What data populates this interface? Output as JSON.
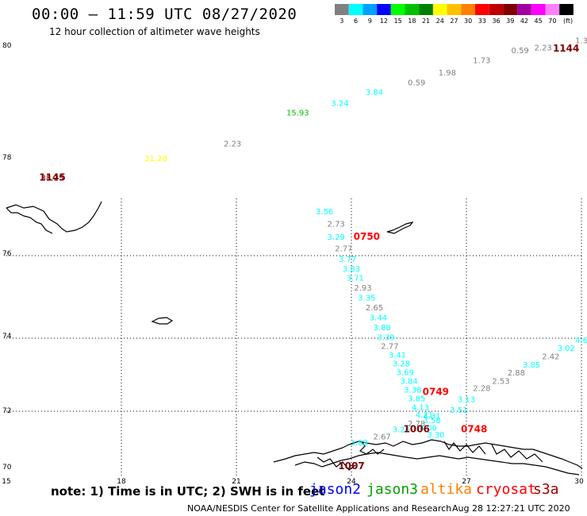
{
  "title": "00:00 – 11:59 UTC 08/27/2020",
  "subtitle": "12 hour collection of altimeter wave heights",
  "legend": {
    "labels": [
      "3",
      "6",
      "9",
      "12",
      "15",
      "18",
      "21",
      "24",
      "27",
      "30",
      "33",
      "36",
      "39",
      "42",
      "45",
      "70",
      "(ft)"
    ],
    "colors": [
      "#808080",
      "#00ffff",
      "#00a0ff",
      "#0000ff",
      "#00ff00",
      "#00c000",
      "#008000",
      "#ffff00",
      "#ffc000",
      "#ff8000",
      "#ff0000",
      "#c00000",
      "#800000",
      "#a000a0",
      "#ff00ff",
      "#ff80ff",
      "#000000"
    ]
  },
  "lat_labels": [
    "80",
    "78",
    "76",
    "74",
    "72",
    "70"
  ],
  "lon_labels": [
    "15",
    "18",
    "21",
    "24",
    "27",
    "30"
  ],
  "observations": [
    {
      "text": "38.25",
      "lon": 16.2,
      "lat": 77.55,
      "color": "#800000"
    },
    {
      "text": "21.28",
      "lon": 18.9,
      "lat": 77.95,
      "color": "#ffff00"
    },
    {
      "text": "2.23",
      "lon": 20.9,
      "lat": 78.22,
      "color": "#808080"
    },
    {
      "text": "15.93",
      "lon": 22.6,
      "lat": 78.78,
      "color": "#00c000"
    },
    {
      "text": "3.24",
      "lon": 23.7,
      "lat": 78.95,
      "color": "#00ffff"
    },
    {
      "text": "3.84",
      "lon": 24.6,
      "lat": 79.15,
      "color": "#00ffff"
    },
    {
      "text": "0.59",
      "lon": 25.7,
      "lat": 79.32,
      "color": "#808080"
    },
    {
      "text": "1.98",
      "lon": 26.5,
      "lat": 79.5,
      "color": "#808080"
    },
    {
      "text": "1.73",
      "lon": 27.4,
      "lat": 79.72,
      "color": "#808080"
    },
    {
      "text": "0.59",
      "lon": 28.4,
      "lat": 79.9,
      "color": "#808080"
    },
    {
      "text": "2.23",
      "lon": 29.0,
      "lat": 79.95,
      "color": "#808080"
    },
    {
      "text": "1.3",
      "lon": 30.0,
      "lat": 80.08,
      "color": "#808080"
    },
    {
      "text": "3.56",
      "lon": 23.3,
      "lat": 76.85,
      "color": "#00ffff"
    },
    {
      "text": "2.73",
      "lon": 23.6,
      "lat": 76.6,
      "color": "#808080"
    },
    {
      "text": "3.29",
      "lon": 23.6,
      "lat": 76.33,
      "color": "#00ffff"
    },
    {
      "text": "2.77",
      "lon": 23.8,
      "lat": 76.09,
      "color": "#808080"
    },
    {
      "text": "3.77",
      "lon": 23.9,
      "lat": 75.85,
      "color": "#00ffff"
    },
    {
      "text": "3.83",
      "lon": 24.0,
      "lat": 75.62,
      "color": "#00ffff"
    },
    {
      "text": "3.71",
      "lon": 24.1,
      "lat": 75.39,
      "color": "#00ffff"
    },
    {
      "text": "2.93",
      "lon": 24.3,
      "lat": 75.15,
      "color": "#808080"
    },
    {
      "text": "3.35",
      "lon": 24.4,
      "lat": 74.91,
      "color": "#00ffff"
    },
    {
      "text": "2.65",
      "lon": 24.6,
      "lat": 74.67,
      "color": "#808080"
    },
    {
      "text": "3.44",
      "lon": 24.7,
      "lat": 74.43,
      "color": "#00ffff"
    },
    {
      "text": "3.88",
      "lon": 24.8,
      "lat": 74.19,
      "color": "#00ffff"
    },
    {
      "text": "3.39",
      "lon": 24.9,
      "lat": 73.95,
      "color": "#00ffff"
    },
    {
      "text": "2.77",
      "lon": 25.0,
      "lat": 73.71,
      "color": "#808080"
    },
    {
      "text": "3.41",
      "lon": 25.2,
      "lat": 73.47,
      "color": "#00ffff"
    },
    {
      "text": "3.28",
      "lon": 25.3,
      "lat": 73.23,
      "color": "#00ffff"
    },
    {
      "text": "3.69",
      "lon": 25.4,
      "lat": 72.99,
      "color": "#00ffff"
    },
    {
      "text": "3.84",
      "lon": 25.5,
      "lat": 72.75,
      "color": "#00ffff"
    },
    {
      "text": "3.38",
      "lon": 25.6,
      "lat": 72.51,
      "color": "#00ffff"
    },
    {
      "text": "3.85",
      "lon": 25.7,
      "lat": 72.27,
      "color": "#00ffff"
    },
    {
      "text": "4.13",
      "lon": 25.8,
      "lat": 72.03,
      "color": "#00ffff"
    },
    {
      "text": "4.21",
      "lon": 25.9,
      "lat": 71.79,
      "color": "#00ffff"
    },
    {
      "text": "4.31",
      "lon": 26.1,
      "lat": 71.75,
      "color": "#00ffff"
    },
    {
      "text": "3.58",
      "lon": 26.1,
      "lat": 71.6,
      "color": "#00ffff"
    },
    {
      "text": "2.78",
      "lon": 25.7,
      "lat": 71.5,
      "color": "#808080"
    },
    {
      "text": "4.00",
      "lon": 26.0,
      "lat": 71.35,
      "color": "#00ffff"
    },
    {
      "text": "3.30",
      "lon": 26.2,
      "lat": 71.12,
      "color": "#00ffff"
    },
    {
      "text": "3.26",
      "lon": 25.3,
      "lat": 71.3,
      "color": "#00ffff"
    },
    {
      "text": "2.67",
      "lon": 24.8,
      "lat": 71.05,
      "color": "#808080"
    },
    {
      "text": "3.88",
      "lon": 24.2,
      "lat": 70.85,
      "color": "#00ffff"
    },
    {
      "text": "3.51",
      "lon": 26.8,
      "lat": 71.95,
      "color": "#00ffff"
    },
    {
      "text": "3.13",
      "lon": 27.0,
      "lat": 72.25,
      "color": "#00ffff"
    },
    {
      "text": "2.28",
      "lon": 27.4,
      "lat": 72.55,
      "color": "#808080"
    },
    {
      "text": "2.53",
      "lon": 27.9,
      "lat": 72.75,
      "color": "#808080"
    },
    {
      "text": "2.88",
      "lon": 28.3,
      "lat": 72.98,
      "color": "#808080"
    },
    {
      "text": "3.85",
      "lon": 28.7,
      "lat": 73.2,
      "color": "#00ffff"
    },
    {
      "text": "2.42",
      "lon": 29.2,
      "lat": 73.42,
      "color": "#808080"
    },
    {
      "text": "3.02",
      "lon": 29.6,
      "lat": 73.65,
      "color": "#00ffff"
    },
    {
      "text": "4.6",
      "lon": 30.0,
      "lat": 73.87,
      "color": "#00ffff"
    }
  ],
  "times": [
    {
      "text": "1145",
      "lon": 16.2,
      "lat": 77.55,
      "color": "#800000"
    },
    {
      "text": "1144",
      "lon": 29.6,
      "lat": 79.93,
      "color": "#800000"
    },
    {
      "text": "0750",
      "lon": 24.4,
      "lat": 76.33,
      "color": "#ff0000"
    },
    {
      "text": "0749",
      "lon": 26.2,
      "lat": 72.45,
      "color": "#ff0000"
    },
    {
      "text": "0748",
      "lon": 27.2,
      "lat": 71.3,
      "color": "#ff0000"
    },
    {
      "text": "1006",
      "lon": 25.7,
      "lat": 71.3,
      "color": "#800000"
    },
    {
      "text": "1007",
      "lon": 24.0,
      "lat": 70.05,
      "color": "#800000"
    }
  ],
  "note": "note: 1) Time is in UTC; 2) SWH is in feet",
  "satellites": [
    {
      "name": "jason2",
      "color": "#0000ff"
    },
    {
      "name": "jason3",
      "color": "#00a000"
    },
    {
      "name": "altika",
      "color": "#ff8000"
    },
    {
      "name": "cryosat",
      "color": "#ff0000"
    },
    {
      "name": "s3a",
      "color": "#a00000"
    }
  ],
  "footer": {
    "credit": "NOAA/NESDIS Center for Satellite Applications and Research",
    "timestamp": "Aug 28 12:27:21 UTC 2020"
  }
}
